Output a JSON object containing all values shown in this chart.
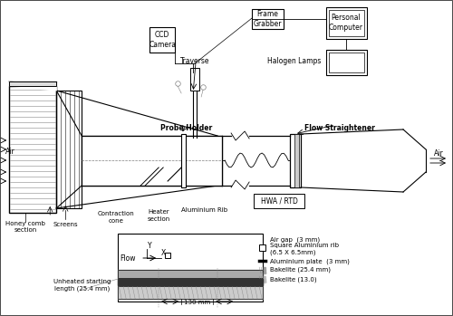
{
  "bg_color": "#f5f5f5",
  "title": "",
  "labels": {
    "air_left": "Air",
    "air_right": "Air",
    "honeycomb": "Honey comb\nsection",
    "screens": "Screens",
    "contraction": "Contraction\ncone",
    "heater": "Heater\nsection",
    "aluminium_rib": "Aluminium Rib",
    "probe_holder": "Probe Holder",
    "flow_straightener": "Flow Straightener",
    "hwa_rtd": "HWA / RTD",
    "traverse": "Traverse",
    "ccd_camera": "CCD\nCamera",
    "halogen_lamps": "Halogen Lamps",
    "frame_grabber": "Frame\nGrabber",
    "personal_computer": "Personal\nComputer",
    "flow": "Flow",
    "unheated": "Unheated starting\nlength (25.4 mm)",
    "dimension": "130 mm",
    "air_gap": "Air gap  (3 mm)",
    "sq_al_rib": "Square Aluminium rib\n(6.5 X 6.5mm)",
    "al_plate": "Aluminium plate  (3 mm)",
    "bakelite1": "Bakelite (25.4 mm)",
    "bakelite2": "Bakelite (13.0)"
  }
}
